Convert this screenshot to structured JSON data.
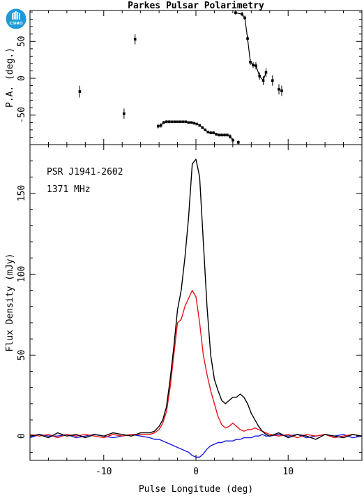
{
  "logo": {
    "text": "CSIRO",
    "color": "#1e9bd7"
  },
  "colors": {
    "total": "#000000",
    "linear": "#e8141a",
    "circular": "#1a1adf"
  },
  "chart_data": [
    {
      "type": "scatter",
      "title": "Parkes Pulsar Polarimetry",
      "xlabel": "",
      "ylabel": "P.A. (deg.)",
      "xlim": [
        -18,
        18
      ],
      "ylim": [
        -90,
        92
      ],
      "yticks": [
        -50,
        0,
        50
      ],
      "ytick_labels": [
        "-50",
        "0",
        "50"
      ],
      "grid": false,
      "points": [
        {
          "x": -12.6,
          "y": -18,
          "err": 8
        },
        {
          "x": -7.8,
          "y": -48,
          "err": 7
        },
        {
          "x": -6.6,
          "y": 53,
          "err": 7
        },
        {
          "x": -4.1,
          "y": -65,
          "err": 3
        },
        {
          "x": -3.8,
          "y": -64,
          "err": 3
        },
        {
          "x": -3.5,
          "y": -60,
          "err": 2
        },
        {
          "x": -3.2,
          "y": -59,
          "err": 2
        },
        {
          "x": -2.9,
          "y": -59,
          "err": 2
        },
        {
          "x": -2.6,
          "y": -59,
          "err": 1.5
        },
        {
          "x": -2.3,
          "y": -59,
          "err": 1.5
        },
        {
          "x": -2.0,
          "y": -59,
          "err": 1.5
        },
        {
          "x": -1.7,
          "y": -59,
          "err": 1
        },
        {
          "x": -1.4,
          "y": -59,
          "err": 1
        },
        {
          "x": -1.1,
          "y": -59,
          "err": 1
        },
        {
          "x": -0.8,
          "y": -60,
          "err": 1
        },
        {
          "x": -0.5,
          "y": -60,
          "err": 1
        },
        {
          "x": -0.2,
          "y": -61,
          "err": 1
        },
        {
          "x": 0.1,
          "y": -62,
          "err": 1
        },
        {
          "x": 0.4,
          "y": -64,
          "err": 1
        },
        {
          "x": 0.7,
          "y": -67,
          "err": 1.5
        },
        {
          "x": 1.0,
          "y": -70,
          "err": 1.5
        },
        {
          "x": 1.3,
          "y": -73,
          "err": 1.5
        },
        {
          "x": 1.6,
          "y": -74,
          "err": 2
        },
        {
          "x": 1.9,
          "y": -74,
          "err": 2
        },
        {
          "x": 2.2,
          "y": -76,
          "err": 2
        },
        {
          "x": 2.5,
          "y": -77,
          "err": 2
        },
        {
          "x": 2.8,
          "y": -77,
          "err": 2
        },
        {
          "x": 3.1,
          "y": -77,
          "err": 2
        },
        {
          "x": 3.4,
          "y": -77,
          "err": 2
        },
        {
          "x": 3.7,
          "y": -79,
          "err": 3
        },
        {
          "x": 4.0,
          "y": -84,
          "err": 3
        },
        {
          "x": 4.6,
          "y": -87,
          "err": 3
        },
        {
          "x": 4.3,
          "y": 89,
          "err": 3
        },
        {
          "x": 5.0,
          "y": 87,
          "err": 3
        },
        {
          "x": 5.3,
          "y": 82,
          "err": 3
        },
        {
          "x": 5.6,
          "y": 54,
          "err": 4
        },
        {
          "x": 5.9,
          "y": 22,
          "err": 4
        },
        {
          "x": 6.2,
          "y": 18,
          "err": 4
        },
        {
          "x": 6.5,
          "y": 17,
          "err": 5
        },
        {
          "x": 6.9,
          "y": 3,
          "err": 5
        },
        {
          "x": 7.3,
          "y": -3,
          "err": 6
        },
        {
          "x": 7.6,
          "y": 8,
          "err": 6
        },
        {
          "x": 8.3,
          "y": -3,
          "err": 7
        },
        {
          "x": 9.0,
          "y": -15,
          "err": 7
        },
        {
          "x": 9.3,
          "y": -17,
          "err": 7
        }
      ]
    },
    {
      "type": "line",
      "title": "",
      "xlabel": "Pulse Longitude (deg)",
      "ylabel": "Flux Density (mJy)",
      "xlim": [
        -18,
        18
      ],
      "ylim": [
        -15,
        180
      ],
      "xticks": [
        -10,
        0,
        10
      ],
      "xtick_labels": [
        "-10",
        "0",
        "10"
      ],
      "yticks": [
        0,
        50,
        100,
        150
      ],
      "ytick_labels": [
        "0",
        "50",
        "100",
        "150"
      ],
      "grid": false,
      "annotations": [
        "PSR J1941-2602",
        "1371 MHz"
      ],
      "x": [
        -18,
        -17,
        -16,
        -15,
        -14,
        -13,
        -12,
        -11,
        -10,
        -9,
        -8,
        -7,
        -6,
        -5,
        -4.5,
        -4,
        -3.6,
        -3.2,
        -2.8,
        -2.4,
        -2.0,
        -1.6,
        -1.2,
        -0.8,
        -0.4,
        0,
        0.4,
        0.8,
        1.2,
        1.6,
        2.0,
        2.4,
        2.8,
        3.2,
        3.6,
        4.0,
        4.4,
        4.8,
        5.2,
        5.6,
        6.0,
        6.4,
        6.8,
        7.2,
        7.6,
        8,
        9,
        10,
        11,
        12,
        13,
        14,
        15,
        16,
        17,
        18
      ],
      "series": [
        {
          "name": "",
          "color": "total",
          "values": [
            0,
            1,
            -1,
            2,
            0,
            1,
            -1,
            1,
            0,
            2,
            1,
            0,
            2,
            2,
            3,
            6,
            10,
            18,
            35,
            55,
            78,
            90,
            110,
            135,
            168,
            171,
            160,
            120,
            80,
            50,
            35,
            28,
            22,
            20,
            22,
            24,
            24,
            26,
            24,
            20,
            14,
            10,
            6,
            3,
            1,
            0,
            2,
            -1,
            1,
            0,
            -2,
            1,
            0,
            -1,
            1,
            0
          ]
        },
        {
          "name": "",
          "color": "linear",
          "values": [
            1,
            0,
            1,
            -1,
            1,
            0,
            1,
            0,
            -1,
            1,
            0,
            1,
            1,
            1,
            2,
            4,
            8,
            15,
            30,
            50,
            70,
            72,
            80,
            85,
            90,
            86,
            70,
            50,
            38,
            28,
            20,
            12,
            7,
            5,
            6,
            8,
            6,
            4,
            3,
            4,
            4,
            5,
            4,
            3,
            2,
            1,
            0,
            1,
            -1,
            1,
            0,
            1,
            -1,
            0,
            1,
            0
          ]
        },
        {
          "name": "",
          "color": "circular",
          "values": [
            -1,
            1,
            0,
            0,
            1,
            -1,
            0,
            1,
            0,
            -1,
            0,
            1,
            0,
            -1,
            -2,
            -2,
            -3,
            -4,
            -5,
            -6,
            -7,
            -8,
            -9,
            -10,
            -12,
            -13,
            -13,
            -11,
            -8,
            -6,
            -5,
            -4,
            -4,
            -3,
            -3,
            -3,
            -2,
            -2,
            -1,
            -1,
            -1,
            0,
            0,
            1,
            0,
            0,
            1,
            0,
            1,
            -1,
            0,
            1,
            0,
            1,
            -1,
            0
          ]
        }
      ]
    }
  ]
}
